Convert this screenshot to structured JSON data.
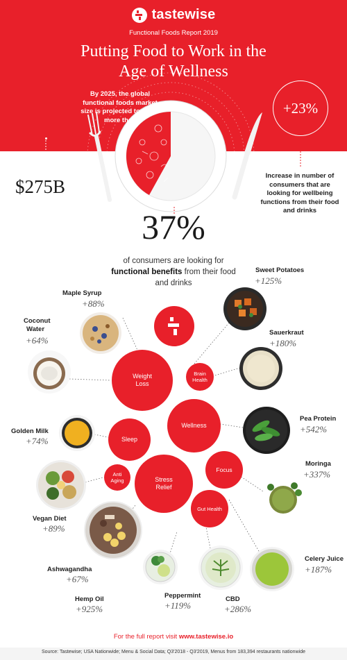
{
  "brand": {
    "name": "tastewise",
    "report": "Functional Foods Report 2019"
  },
  "headline": {
    "line1": "Putting Food to Work in the",
    "line2": "Age of Wellness"
  },
  "market": {
    "text": "By 2025, the global functional foods market size is projected to reach more than",
    "amount": "$275B"
  },
  "increase": {
    "value": "+23%",
    "text": "Increase in number of consumers that are looking for wellbeing functions from their food and drinks"
  },
  "share": {
    "value": "37%",
    "text_before": "of consumers are looking for",
    "text_bold": "functional benefits",
    "text_after": "from their food and drinks"
  },
  "benefits": {
    "weight_loss": {
      "line1": "Weight",
      "line2": "Loss"
    },
    "brain_health": {
      "line1": "Brain",
      "line2": "Health"
    },
    "wellness": "Wellness",
    "sleep": "Sleep",
    "focus": "Focus",
    "anti_aging": {
      "line1": "Anti",
      "line2": "Aging"
    },
    "stress_relief": {
      "line1": "Stress",
      "line2": "Relief"
    },
    "gut_health": "Gut Health"
  },
  "foods": {
    "maple_syrup": {
      "name": "Maple Syrup",
      "pct": "+88%"
    },
    "coconut_water": {
      "name_line1": "Coconut",
      "name_line2": "Water",
      "pct": "+64%"
    },
    "golden_milk": {
      "name": "Golden Milk",
      "pct": "+74%"
    },
    "vegan_diet": {
      "name": "Vegan Diet",
      "pct": "+89%"
    },
    "ashwagandha": {
      "name": "Ashwagandha",
      "pct": "+67%"
    },
    "hemp_oil": {
      "name": "Hemp Oil",
      "pct": "+925%"
    },
    "peppermint": {
      "name": "Peppermint",
      "pct": "+119%"
    },
    "cbd": {
      "name": "CBD",
      "pct": "+286%"
    },
    "sweet_potatoes": {
      "name": "Sweet Potatoes",
      "pct": "+125%"
    },
    "sauerkraut": {
      "name": "Sauerkraut",
      "pct": "+180%"
    },
    "pea_protein": {
      "name": "Pea Protein",
      "pct": "+542%"
    },
    "moringa": {
      "name": "Moringa",
      "pct": "+337%"
    },
    "celery_juice": {
      "name": "Celery Juice",
      "pct": "+187%"
    }
  },
  "cta": {
    "prefix": "For the full report visit",
    "url": "www.tastewise.io"
  },
  "source": "Source:  Tastewise; USA Nationwide; Menu & Social Data; Q3'2018 - Q3'2019, Menus from 183,394 restaurants nationwide",
  "colors": {
    "accent": "#e8202a",
    "white": "#ffffff",
    "text": "#2b2b2b"
  }
}
